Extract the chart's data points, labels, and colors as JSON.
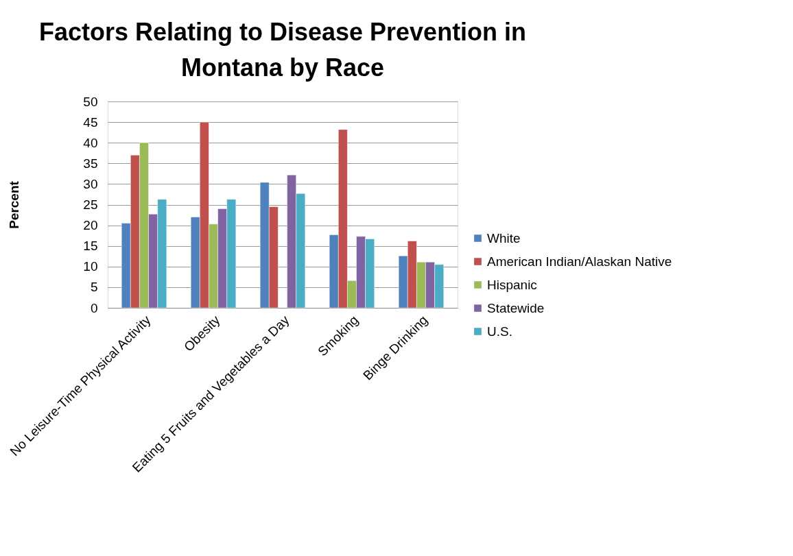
{
  "chart_data": {
    "type": "bar",
    "title": "Factors Relating to Disease Prevention in Montana by Race",
    "ylabel": "Percent",
    "categories": [
      "No Leisure-Time Physical Activity",
      "Obesity",
      "Eating 5 Fruits and Vegetables a Day",
      "Smoking",
      "Binge Drinking"
    ],
    "series": [
      {
        "name": "White",
        "color": "#4f81bd",
        "values": [
          20.5,
          22,
          30.4,
          17.7,
          12.6
        ]
      },
      {
        "name": "American Indian/Alaskan Native",
        "color": "#c0504d",
        "values": [
          37,
          45,
          24.5,
          43.2,
          16.2
        ]
      },
      {
        "name": "Hispanic",
        "color": "#9bbb59",
        "values": [
          40,
          20.3,
          null,
          6.6,
          11.1
        ]
      },
      {
        "name": "Statewide",
        "color": "#8064a2",
        "values": [
          22.7,
          24,
          32.2,
          17.3,
          11.1
        ]
      },
      {
        "name": "U.S.",
        "color": "#4bacc6",
        "values": [
          26.3,
          26.3,
          27.7,
          16.7,
          10.5
        ]
      }
    ],
    "ylim": [
      0,
      50
    ],
    "yticks": [
      0,
      5,
      10,
      15,
      20,
      25,
      30,
      35,
      40,
      45,
      50
    ],
    "grid": "y",
    "legend": "right"
  }
}
